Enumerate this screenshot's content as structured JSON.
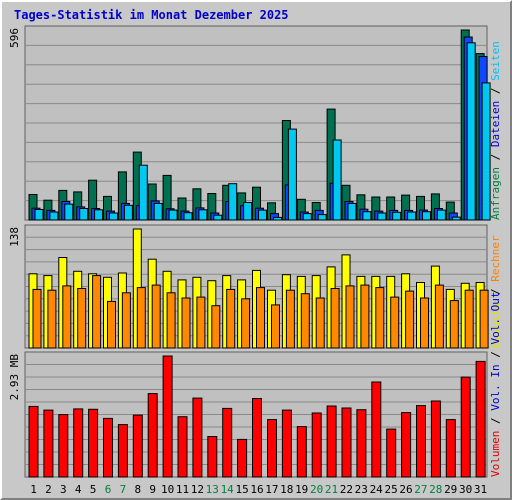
{
  "chart_data": {
    "type": "bar",
    "title": "Tages-Statistik im Monat Dezember 2025",
    "categories": [
      "1",
      "2",
      "3",
      "4",
      "5",
      "6",
      "7",
      "8",
      "9",
      "10",
      "11",
      "12",
      "13",
      "14",
      "15",
      "16",
      "17",
      "18",
      "19",
      "20",
      "21",
      "22",
      "23",
      "24",
      "25",
      "26",
      "27",
      "28",
      "29",
      "30",
      "31"
    ],
    "weekend_days": [
      "6",
      "7",
      "13",
      "14",
      "20",
      "21",
      "27",
      "28"
    ],
    "panels": [
      {
        "name": "hits",
        "ytick_label": "596",
        "ylim": [
          0,
          596
        ],
        "legend": [
          {
            "text": "Anfragen",
            "color": "#008040"
          },
          {
            "text": "Dateien",
            "color": "#0000cc"
          },
          {
            "text": "Seiten",
            "color": "#00c0ff"
          }
        ],
        "series": [
          {
            "name": "Anfragen",
            "color": "#007050",
            "values": [
              80,
              62,
              93,
              88,
              125,
              74,
              151,
              213,
              113,
              140,
              69,
              98,
              83,
              109,
              85,
              103,
              54,
              312,
              65,
              55,
              348,
              109,
              79,
              72,
              72,
              78,
              74,
              82,
              56,
              596,
              522
            ]
          },
          {
            "name": "Dateien",
            "color": "#1048ff",
            "values": [
              37,
              30,
              58,
              41,
              36,
              28,
              52,
              45,
              60,
              35,
              28,
              38,
              22,
              58,
              45,
              37,
              20,
              110,
              25,
              30,
              115,
              58,
              34,
              28,
              30,
              30,
              31,
              36,
              22,
              574,
              513
            ]
          },
          {
            "name": "Seiten",
            "color": "#00c8f0",
            "values": [
              33,
              25,
              50,
              36,
              32,
              22,
              46,
              172,
              52,
              31,
              23,
              32,
              15,
              114,
              55,
              31,
              8,
              285,
              20,
              17,
              251,
              52,
              26,
              22,
              24,
              25,
              26,
              31,
              9,
              556,
              430
            ]
          }
        ]
      },
      {
        "name": "visits",
        "ytick_label": "138",
        "ylim": [
          0,
          138
        ],
        "legend": [
          {
            "text": "Besuche",
            "color": "#e0e000"
          },
          {
            "text": "Rechner",
            "color": "#ff8000"
          }
        ],
        "series": [
          {
            "name": "Besuche",
            "color": "#ffff00",
            "values": [
              86,
              84,
              105,
              89,
              86,
              82,
              87,
              138,
              103,
              89,
              79,
              82,
              78,
              84,
              79,
              90,
              67,
              85,
              83,
              84,
              94,
              108,
              83,
              83,
              83,
              86,
              76,
              95,
              68,
              75,
              76
            ]
          },
          {
            "name": "Rechner",
            "color": "#ff8800",
            "values": [
              68,
              67,
              72,
              69,
              84,
              54,
              64,
              70,
              73,
              64,
              58,
              59,
              49,
              68,
              57,
              70,
              50,
              67,
              63,
              58,
              69,
              72,
              73,
              70,
              59,
              66,
              58,
              73,
              55,
              67,
              67
            ]
          }
        ]
      },
      {
        "name": "volume",
        "ytick_label": "2.93 MB",
        "ylim": [
          0,
          2.93
        ],
        "legend": [
          {
            "text": "Volumen",
            "color": "#e00000"
          },
          {
            "text": "Vol. In",
            "color": "#0000cc"
          },
          {
            "text": "Vol. Out",
            "color": "#0000cc"
          }
        ],
        "series": [
          {
            "name": "Volumen",
            "color": "#ff0000",
            "values": [
              1.71,
              1.62,
              1.51,
              1.65,
              1.64,
              1.42,
              1.27,
              1.5,
              2.02,
              2.93,
              1.46,
              1.91,
              0.98,
              1.66,
              0.91,
              1.9,
              1.39,
              1.62,
              1.22,
              1.55,
              1.72,
              1.67,
              1.63,
              2.3,
              1.16,
              1.56,
              1.73,
              1.84,
              1.39,
              2.42,
              2.8
            ]
          }
        ]
      }
    ]
  }
}
